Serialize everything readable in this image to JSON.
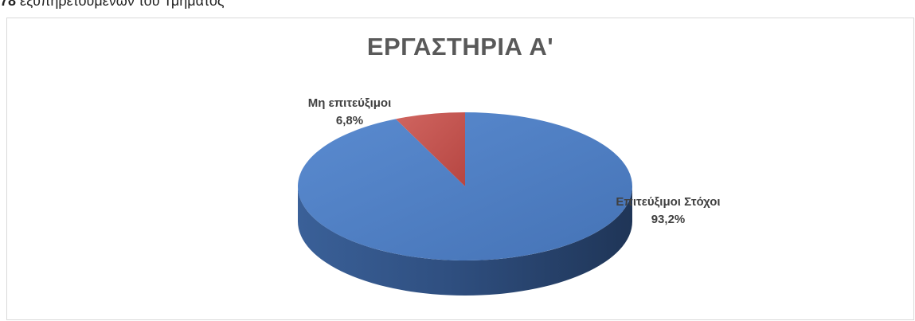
{
  "header": {
    "number": "78",
    "text": "εξυπηρετούμενων του Τμήματος"
  },
  "chart_data": {
    "type": "pie",
    "title": "ΕΡΓΑΣΤΗΡΙΑ Α'",
    "slices": [
      {
        "label": "Επιτεύξιμοι Στόχοι",
        "value": 93.2,
        "value_label": "93,2%",
        "color": "#4f7fc0"
      },
      {
        "label": "Μη επιτεύξιμοι",
        "value": 6.8,
        "value_label": "6,8%",
        "color": "#c0504d"
      }
    ],
    "style": "3d",
    "legend": "none"
  }
}
